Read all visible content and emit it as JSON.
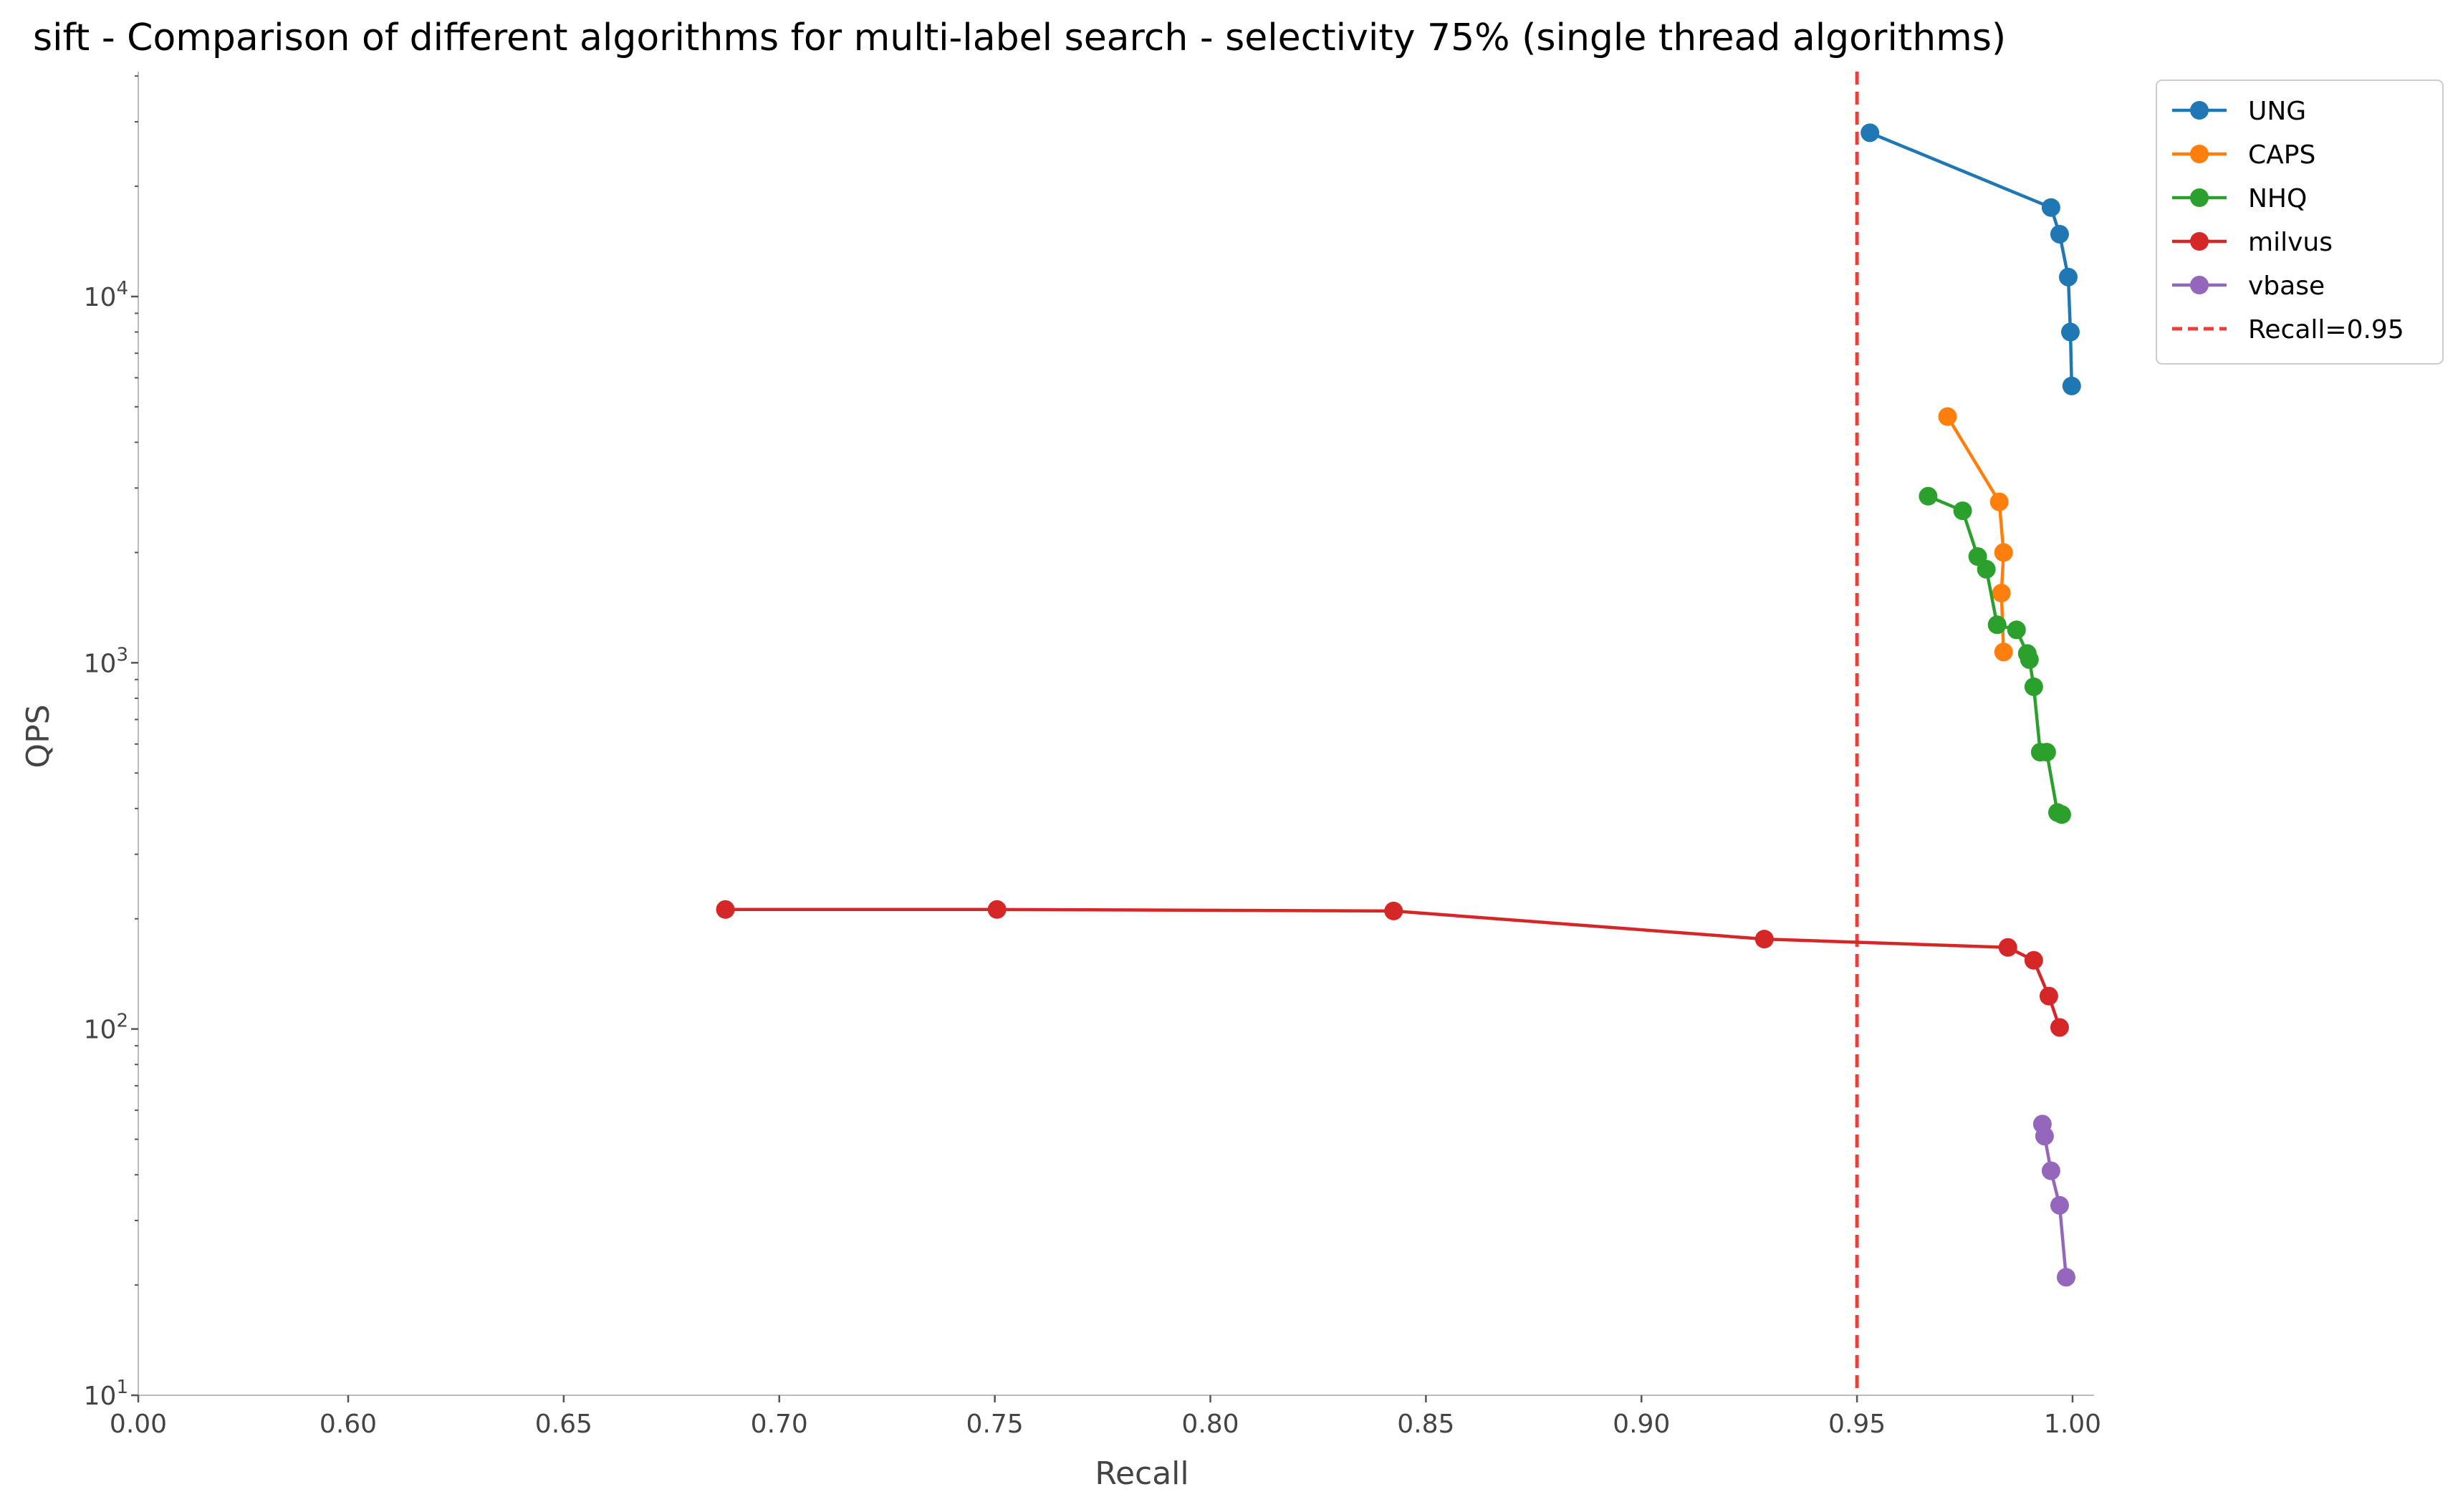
{
  "chart_data": {
    "type": "line",
    "title": "sift - Comparison of different algorithms for multi-label search - selectivity 75% (single thread algorithms)",
    "xlabel": "Recall",
    "ylabel": "QPS",
    "y_scale": "log",
    "ylim": [
      10,
      40000
    ],
    "x_axis_note": "tick at 0.00 followed by ticks 0.60 to 1.00; region from 0.00 to 0.60 is compressed",
    "x_ticks": [
      "0.00",
      "0.60",
      "0.65",
      "0.70",
      "0.75",
      "0.80",
      "0.85",
      "0.90",
      "0.95",
      "1.00"
    ],
    "y_ticks": [
      {
        "base": "10",
        "exp": "1",
        "value": 10
      },
      {
        "base": "10",
        "exp": "2",
        "value": 100
      },
      {
        "base": "10",
        "exp": "3",
        "value": 1000
      },
      {
        "base": "10",
        "exp": "4",
        "value": 10000
      }
    ],
    "grid": false,
    "legend_position": "top-right",
    "series": [
      {
        "name": "UNG",
        "color": "#1f77b4",
        "x": [
          0.953,
          0.995,
          0.997,
          0.999,
          0.9995,
          0.9998
        ],
        "y": [
          28000,
          17500,
          14800,
          11300,
          8000,
          5700
        ]
      },
      {
        "name": "CAPS",
        "color": "#ff7f0e",
        "x": [
          0.971,
          0.983,
          0.984,
          0.9835,
          0.984
        ],
        "y": [
          4700,
          2750,
          2000,
          1550,
          1070
        ]
      },
      {
        "name": "NHQ",
        "color": "#2ca02c",
        "x": [
          0.9665,
          0.9745,
          0.978,
          0.98,
          0.9825,
          0.987,
          0.9895,
          0.99,
          0.991,
          0.9925,
          0.994,
          0.9965,
          0.9975
        ],
        "y": [
          2850,
          2600,
          1950,
          1800,
          1270,
          1230,
          1060,
          1020,
          860,
          570,
          570,
          390,
          385
        ]
      },
      {
        "name": "milvus",
        "color": "#d62728",
        "x": [
          0.6875,
          0.7505,
          0.8425,
          0.9285,
          0.985,
          0.991,
          0.9945,
          0.997
        ],
        "y": [
          212,
          212,
          210,
          176,
          167,
          154,
          123,
          101
        ]
      },
      {
        "name": "vbase",
        "color": "#9467bd",
        "x": [
          0.993,
          0.9935,
          0.995,
          0.997,
          0.9985
        ],
        "y": [
          55,
          51,
          41,
          33,
          21
        ]
      }
    ],
    "reference_line": {
      "name": "Recall=0.95",
      "x": 0.95,
      "color": "#e8413c",
      "style": "dashed"
    }
  }
}
